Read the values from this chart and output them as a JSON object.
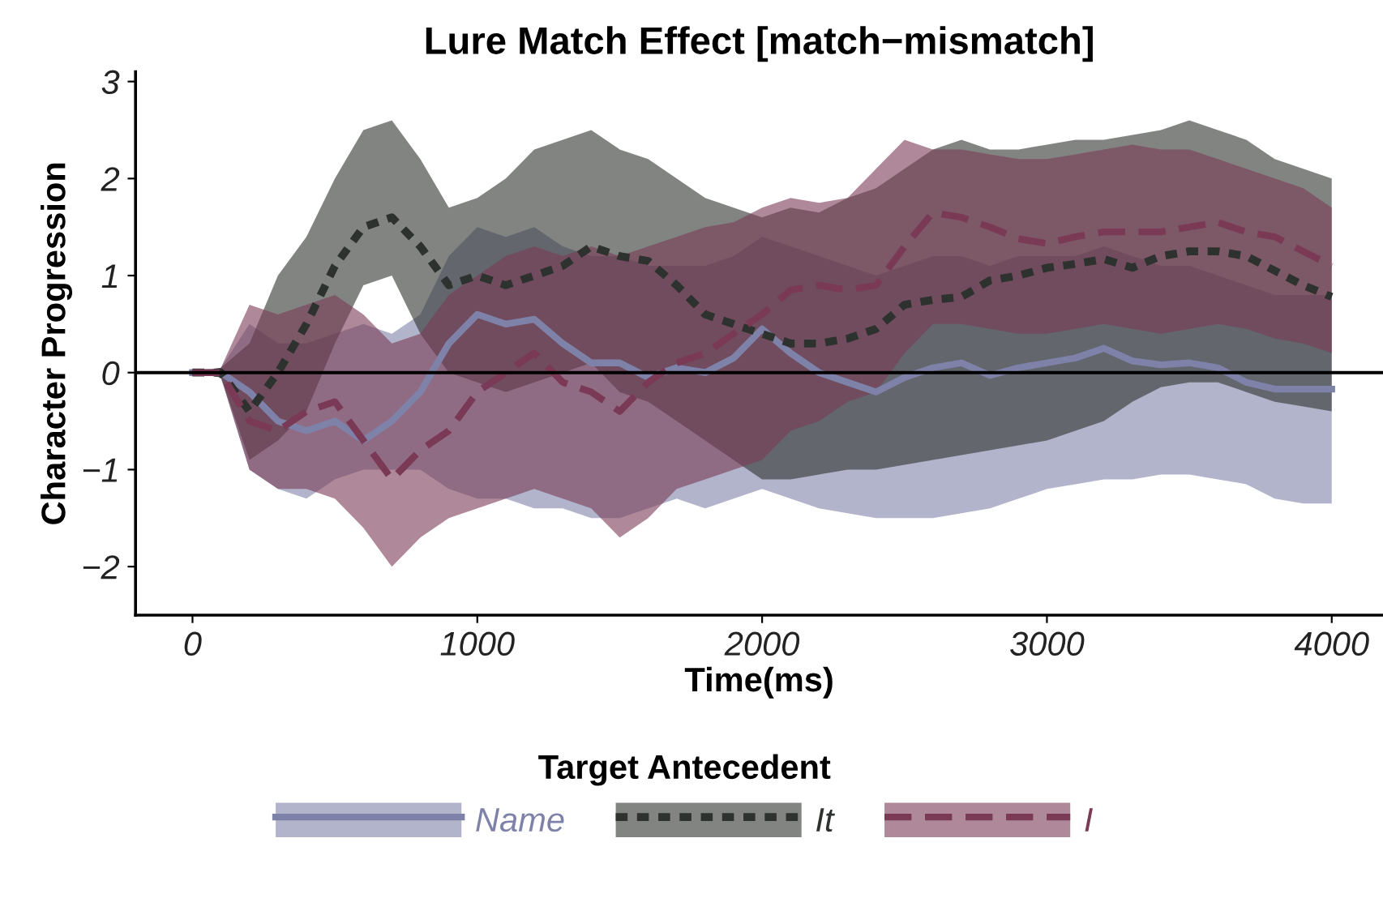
{
  "chart_data": {
    "type": "line",
    "title": "Lure Match Effect [match−mismatch]",
    "xlabel": "Time(ms)",
    "ylabel": "Character Progression",
    "legend_title": "Target Antecedent",
    "legend": "bottom",
    "grid": false,
    "marker": "none",
    "x": [
      0,
      100,
      200,
      300,
      400,
      500,
      600,
      700,
      800,
      900,
      1000,
      1100,
      1200,
      1300,
      1400,
      1500,
      1600,
      1700,
      1800,
      1900,
      2000,
      2100,
      2200,
      2300,
      2400,
      2500,
      2600,
      2700,
      2800,
      2900,
      3000,
      3100,
      3200,
      3300,
      3400,
      3500,
      3600,
      3700,
      3800,
      3900,
      4000
    ],
    "xlim": [
      -200,
      4180
    ],
    "xticks": [
      0,
      1000,
      2000,
      3000,
      4000
    ],
    "ylim": [
      -2.5,
      3.1
    ],
    "yticks": [
      {
        "value": -2,
        "label": "−2"
      },
      {
        "value": -1,
        "label": "−1"
      },
      0,
      1,
      2,
      3
    ],
    "ref_lines": [
      {
        "axis": "y",
        "value": 0,
        "color": "#000000",
        "line_style": "solid"
      }
    ],
    "series": [
      {
        "name": "Name",
        "color": "#7f82a8",
        "line_style": "solid",
        "values": [
          0,
          0,
          -0.2,
          -0.5,
          -0.6,
          -0.5,
          -0.7,
          -0.5,
          -0.2,
          0.3,
          0.6,
          0.5,
          0.55,
          0.3,
          0.1,
          0.1,
          -0.05,
          0.05,
          0.0,
          0.15,
          0.45,
          0.2,
          0.0,
          -0.1,
          -0.2,
          -0.05,
          0.05,
          0.1,
          -0.03,
          0.05,
          0.1,
          0.15,
          0.25,
          0.12,
          0.08,
          0.1,
          0.05,
          -0.1,
          -0.17,
          -0.17,
          -0.17
        ],
        "lower": [
          0,
          -0.05,
          -1.0,
          -1.2,
          -1.3,
          -1.1,
          -1.0,
          -1.0,
          -1.0,
          -1.2,
          -1.3,
          -1.3,
          -1.4,
          -1.4,
          -1.5,
          -1.5,
          -1.4,
          -1.3,
          -1.4,
          -1.3,
          -1.2,
          -1.3,
          -1.4,
          -1.45,
          -1.5,
          -1.5,
          -1.5,
          -1.45,
          -1.4,
          -1.3,
          -1.2,
          -1.15,
          -1.1,
          -1.1,
          -1.05,
          -1.05,
          -1.1,
          -1.15,
          -1.3,
          -1.35,
          -1.35
        ],
        "upper": [
          0,
          0.05,
          0.5,
          0.3,
          0.3,
          0.4,
          0.5,
          0.4,
          0.6,
          1.2,
          1.5,
          1.4,
          1.5,
          1.3,
          1.2,
          1.2,
          1.1,
          1.1,
          1.1,
          1.2,
          1.4,
          1.3,
          1.2,
          1.1,
          1.0,
          1.1,
          1.2,
          1.2,
          1.1,
          1.2,
          1.2,
          1.2,
          1.3,
          1.2,
          1.1,
          1.1,
          1.0,
          0.9,
          0.8,
          0.8,
          0.8
        ]
      },
      {
        "name": "It",
        "color": "#2e322e",
        "line_style": "dotted",
        "values": [
          0,
          0,
          -0.4,
          0.0,
          0.5,
          1.1,
          1.5,
          1.6,
          1.3,
          0.9,
          1.0,
          0.9,
          1.0,
          1.1,
          1.3,
          1.2,
          1.15,
          0.9,
          0.6,
          0.5,
          0.4,
          0.3,
          0.3,
          0.35,
          0.45,
          0.7,
          0.75,
          0.78,
          0.95,
          1.0,
          1.08,
          1.12,
          1.17,
          1.08,
          1.2,
          1.25,
          1.25,
          1.2,
          1.05,
          0.9,
          0.78
        ],
        "lower": [
          0,
          -0.05,
          -0.9,
          -0.7,
          -0.4,
          0.3,
          0.9,
          1.0,
          0.4,
          0.0,
          -0.1,
          -0.2,
          -0.1,
          0.0,
          0.1,
          -0.2,
          -0.3,
          -0.5,
          -0.7,
          -0.9,
          -1.1,
          -1.1,
          -1.05,
          -1.0,
          -1.0,
          -0.95,
          -0.9,
          -0.85,
          -0.8,
          -0.75,
          -0.7,
          -0.6,
          -0.5,
          -0.3,
          -0.15,
          -0.1,
          -0.1,
          -0.2,
          -0.3,
          -0.35,
          -0.4
        ],
        "upper": [
          0,
          0.05,
          0.3,
          1.0,
          1.4,
          2.0,
          2.5,
          2.6,
          2.2,
          1.7,
          1.8,
          2.0,
          2.3,
          2.4,
          2.5,
          2.3,
          2.2,
          2.0,
          1.8,
          1.7,
          1.6,
          1.7,
          1.65,
          1.8,
          1.9,
          2.1,
          2.3,
          2.4,
          2.3,
          2.3,
          2.35,
          2.4,
          2.4,
          2.45,
          2.5,
          2.6,
          2.5,
          2.4,
          2.2,
          2.1,
          2.0
        ]
      },
      {
        "name": "I",
        "color": "#7a3a55",
        "line_style": "dashed",
        "values": [
          0,
          0,
          -0.5,
          -0.6,
          -0.4,
          -0.3,
          -0.7,
          -1.1,
          -0.8,
          -0.6,
          -0.2,
          0.0,
          0.2,
          -0.1,
          -0.2,
          -0.4,
          -0.1,
          0.1,
          0.2,
          0.4,
          0.6,
          0.85,
          0.9,
          0.85,
          0.9,
          1.3,
          1.65,
          1.6,
          1.5,
          1.38,
          1.33,
          1.4,
          1.45,
          1.45,
          1.45,
          1.5,
          1.55,
          1.45,
          1.4,
          1.25,
          1.1
        ],
        "lower": [
          0,
          -0.05,
          -1.0,
          -1.2,
          -1.2,
          -1.3,
          -1.6,
          -2.0,
          -1.7,
          -1.5,
          -1.4,
          -1.3,
          -1.2,
          -1.3,
          -1.4,
          -1.7,
          -1.5,
          -1.2,
          -1.1,
          -1.0,
          -0.9,
          -0.6,
          -0.5,
          -0.3,
          -0.2,
          0.2,
          0.5,
          0.5,
          0.45,
          0.4,
          0.4,
          0.45,
          0.5,
          0.45,
          0.4,
          0.45,
          0.5,
          0.45,
          0.35,
          0.3,
          0.2
        ],
        "upper": [
          0,
          0.05,
          0.7,
          0.6,
          0.7,
          0.8,
          0.6,
          0.3,
          0.4,
          0.8,
          1.0,
          1.2,
          1.3,
          1.2,
          1.3,
          1.2,
          1.3,
          1.4,
          1.5,
          1.55,
          1.7,
          1.8,
          1.75,
          1.8,
          2.1,
          2.4,
          2.3,
          2.3,
          2.25,
          2.2,
          2.2,
          2.25,
          2.3,
          2.35,
          2.3,
          2.3,
          2.2,
          2.1,
          2.0,
          1.9,
          1.7
        ]
      }
    ]
  }
}
